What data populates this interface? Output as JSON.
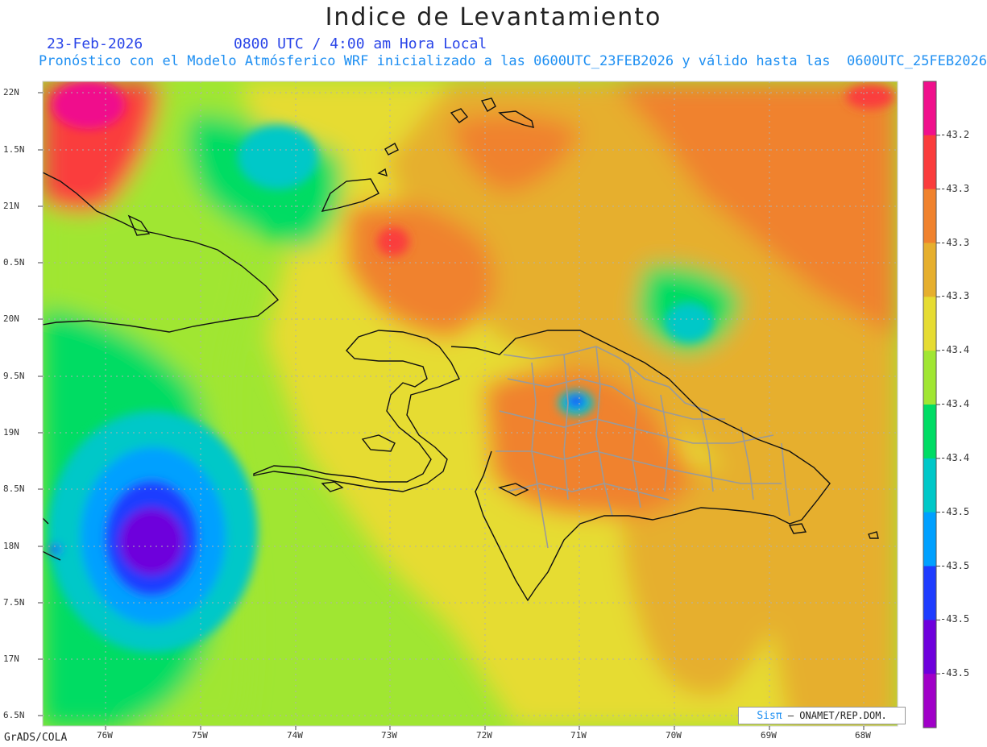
{
  "title": "Indice de Levantamiento",
  "date": "23-Feb-2026",
  "time": "0800 UTC / 4:00 am Hora Local",
  "model_line": "Pronóstico con el Modelo Atmósferico WRF inicializado a las 0600UTC_23FEB2026 y válido hasta las  0600UTC_25FEB2026",
  "lat_labels": [
    "22N",
    "1.5N",
    "21N",
    "0.5N",
    "20N",
    "9.5N",
    "19N",
    "8.5N",
    "18N",
    "7.5N",
    "17N",
    "6.5N"
  ],
  "lon_labels": [
    "76W",
    "75W",
    "74W",
    "73W",
    "72W",
    "71W",
    "70W",
    "69W",
    "68W"
  ],
  "credit": "GrADS/COLA",
  "signature_sis": "Sisπ",
  "signature_rest": "– ONAMET/REP.DOM.",
  "colorbar": {
    "labels": [
      "-43.2",
      "-43.3",
      "-43.3",
      "-43.3",
      "-43.4",
      "-43.4",
      "-43.4",
      "-43.5",
      "-43.5",
      "-43.5",
      "-43.5"
    ],
    "colors": [
      "#f0108c",
      "#fa3c3c",
      "#f0822d",
      "#e6af2d",
      "#e6dc32",
      "#a0e632",
      "#00dc64",
      "#00c8c8",
      "#00a0ff",
      "#1e3cff",
      "#6e00dc",
      "#a000c8"
    ]
  },
  "colors": {
    "title_blue": "#2a45e8",
    "subtitle_blue": "#1e8ff2",
    "coast": "#111111",
    "provinces": "#9a9a9a"
  }
}
